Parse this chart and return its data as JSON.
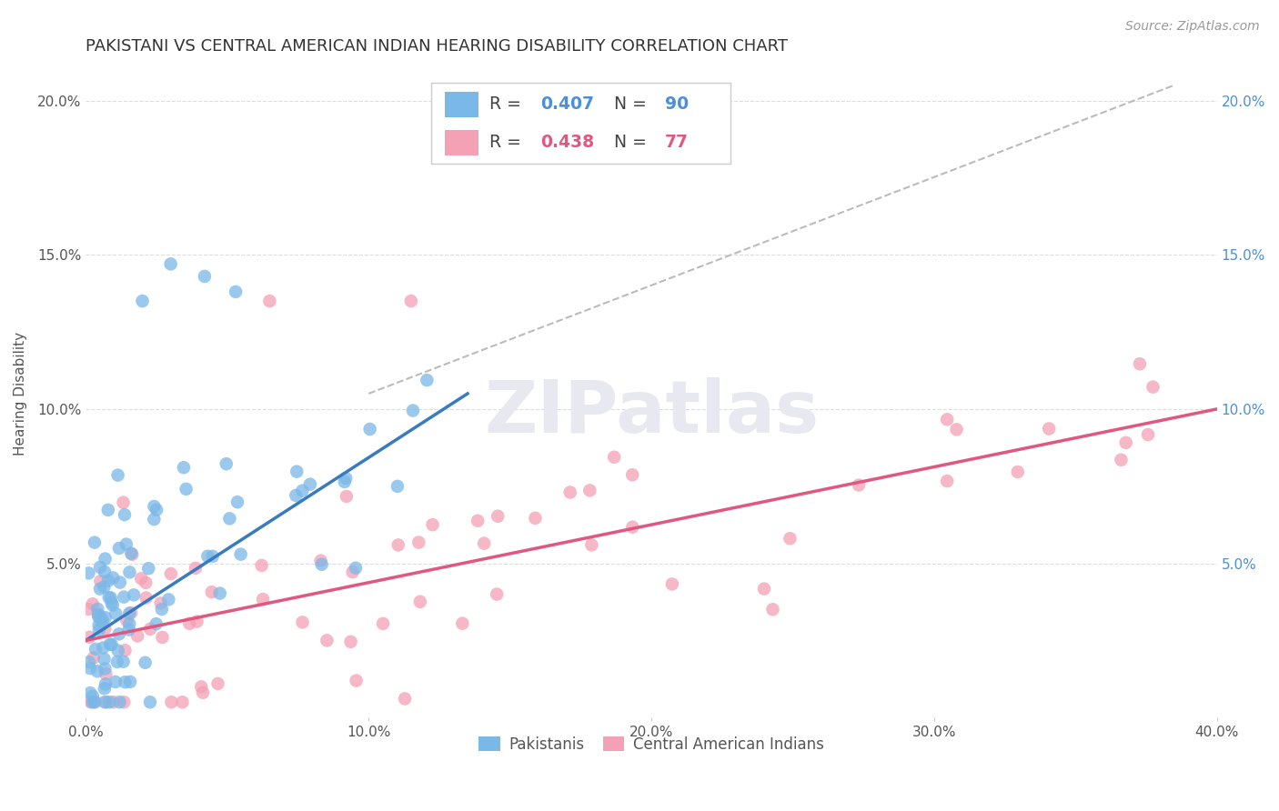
{
  "title": "PAKISTANI VS CENTRAL AMERICAN INDIAN HEARING DISABILITY CORRELATION CHART",
  "source": "Source: ZipAtlas.com",
  "ylabel": "Hearing Disability",
  "xlim": [
    0.0,
    0.4
  ],
  "ylim": [
    0.0,
    0.21
  ],
  "xticks": [
    0.0,
    0.1,
    0.2,
    0.3,
    0.4
  ],
  "xtick_labels": [
    "0.0%",
    "10.0%",
    "20.0%",
    "30.0%",
    "40.0%"
  ],
  "yticks": [
    0.0,
    0.05,
    0.1,
    0.15,
    0.2
  ],
  "ytick_labels": [
    "",
    "5.0%",
    "10.0%",
    "15.0%",
    "20.0%"
  ],
  "right_ytick_labels": [
    "",
    "5.0%",
    "10.0%",
    "15.0%",
    "20.0%"
  ],
  "blue_color": "#7ab8e8",
  "pink_color": "#f4a0b5",
  "blue_line_color": "#3a7bbf",
  "pink_line_color": "#e05880",
  "dashed_line_color": "#bbbbbb",
  "pakistanis_label": "Pakistanis",
  "central_label": "Central American Indians",
  "title_fontsize": 13,
  "source_fontsize": 10,
  "axis_label_fontsize": 11,
  "tick_fontsize": 11,
  "background_color": "#ffffff",
  "grid_color": "#dddddd",
  "watermark_text": "ZIPatlas",
  "watermark_color": "#e8e8f0",
  "blue_trendline_x": [
    0.0,
    0.135
  ],
  "blue_trendline_y": [
    0.025,
    0.105
  ],
  "pink_trendline_x": [
    0.0,
    0.4
  ],
  "pink_trendline_y": [
    0.025,
    0.1
  ],
  "dashed_trendline_x": [
    0.1,
    0.385
  ],
  "dashed_trendline_y": [
    0.105,
    0.205
  ]
}
